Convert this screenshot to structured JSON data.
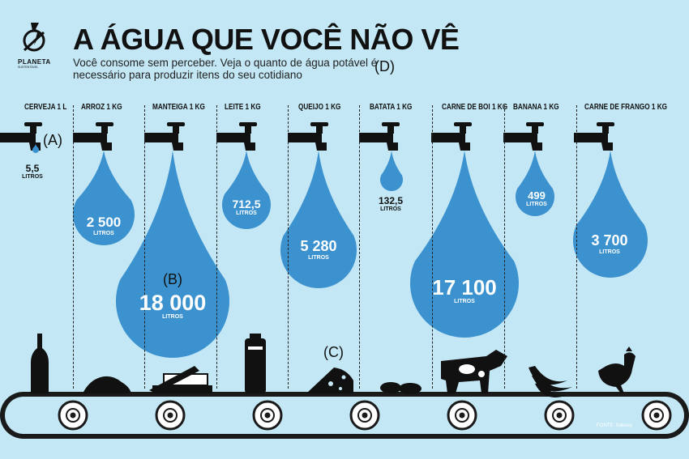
{
  "header": {
    "title": "A ÁGUA QUE VOCÊ NÃO VÊ",
    "subtitle": "Você consome sem perceber. Veja o quanto de água potável é necessário para produzir itens do seu cotidiano",
    "logo_brand": "PLANETA",
    "logo_sub": "SUSTENTÁVEL"
  },
  "annotations": {
    "a": "(A)",
    "b": "(B)",
    "c": "(C)",
    "d": "(D)"
  },
  "items": [
    {
      "label": "CERVEJA 1 L",
      "value": "5,5",
      "unit": "LITROS",
      "icon": "beer-bottle-icon"
    },
    {
      "label": "ARROZ 1 KG",
      "value": "2 500",
      "unit": "LITROS",
      "icon": "rice-pile-icon"
    },
    {
      "label": "MANTEIGA 1 KG",
      "value": "18 000",
      "unit": "LITROS",
      "icon": "butter-dish-icon"
    },
    {
      "label": "LEITE 1 KG",
      "value": "712,5",
      "unit": "LITROS",
      "icon": "milk-carton-icon"
    },
    {
      "label": "QUEIJO 1 KG",
      "value": "5 280",
      "unit": "LITROS",
      "icon": "cheese-icon"
    },
    {
      "label": "BATATA 1 KG",
      "value": "132,5",
      "unit": "LITROS",
      "icon": "potato-icon"
    },
    {
      "label": "CARNE DE BOI 1 KG",
      "value": "17 100",
      "unit": "LITROS",
      "icon": "cow-icon"
    },
    {
      "label": "BANANA 1 KG",
      "value": "499",
      "unit": "LITROS",
      "icon": "banana-icon"
    },
    {
      "label": "CARNE DE FRANGO 1 KG",
      "value": "3 700",
      "unit": "LITROS",
      "icon": "chicken-icon"
    }
  ],
  "source": "FONTE: Sabesp",
  "colors": {
    "background": "#c3e7f5",
    "drop": "#3b92cf",
    "tap": "#111111",
    "belt": "#1a1a1a"
  }
}
